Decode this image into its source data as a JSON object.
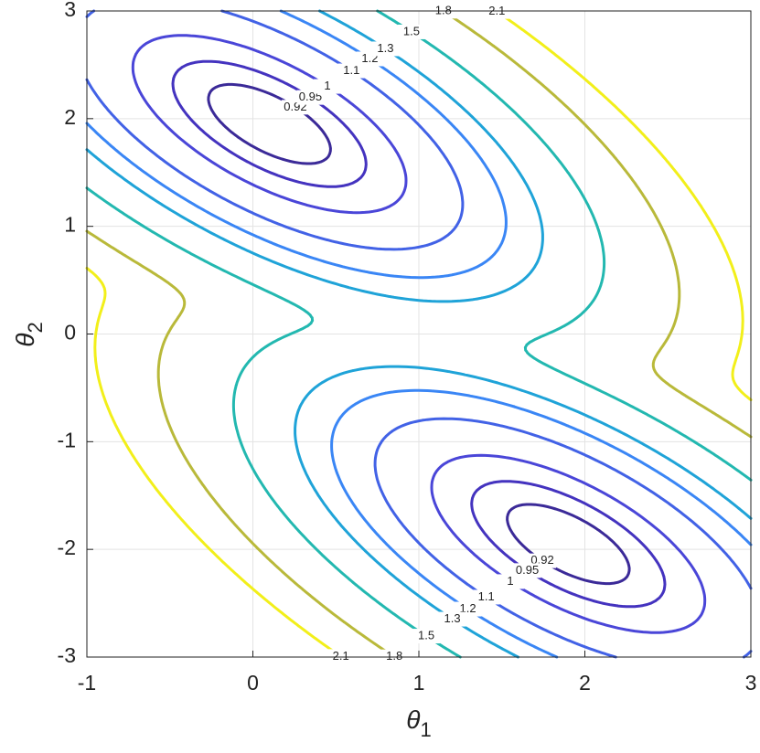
{
  "chart_data": {
    "type": "contour",
    "xlabel_symbol": "θ",
    "xlabel_subscript": "1",
    "ylabel_symbol": "θ",
    "ylabel_subscript": "2",
    "xlim": [
      -1,
      3
    ],
    "ylim": [
      -3,
      3
    ],
    "xticks": [
      -1,
      0,
      1,
      2,
      3
    ],
    "yticks": [
      -3,
      -2,
      -1,
      0,
      1,
      2,
      3
    ],
    "grid": true,
    "levels": [
      0.92,
      0.95,
      1,
      1.1,
      1.2,
      1.3,
      1.5,
      1.8,
      2.1
    ],
    "colors": [
      "#3b2a98",
      "#4433bf",
      "#4a46d8",
      "#4262e6",
      "#3a86f5",
      "#1fa3d8",
      "#23b8b0",
      "#b9b93a",
      "#f2ef1a"
    ]
  }
}
